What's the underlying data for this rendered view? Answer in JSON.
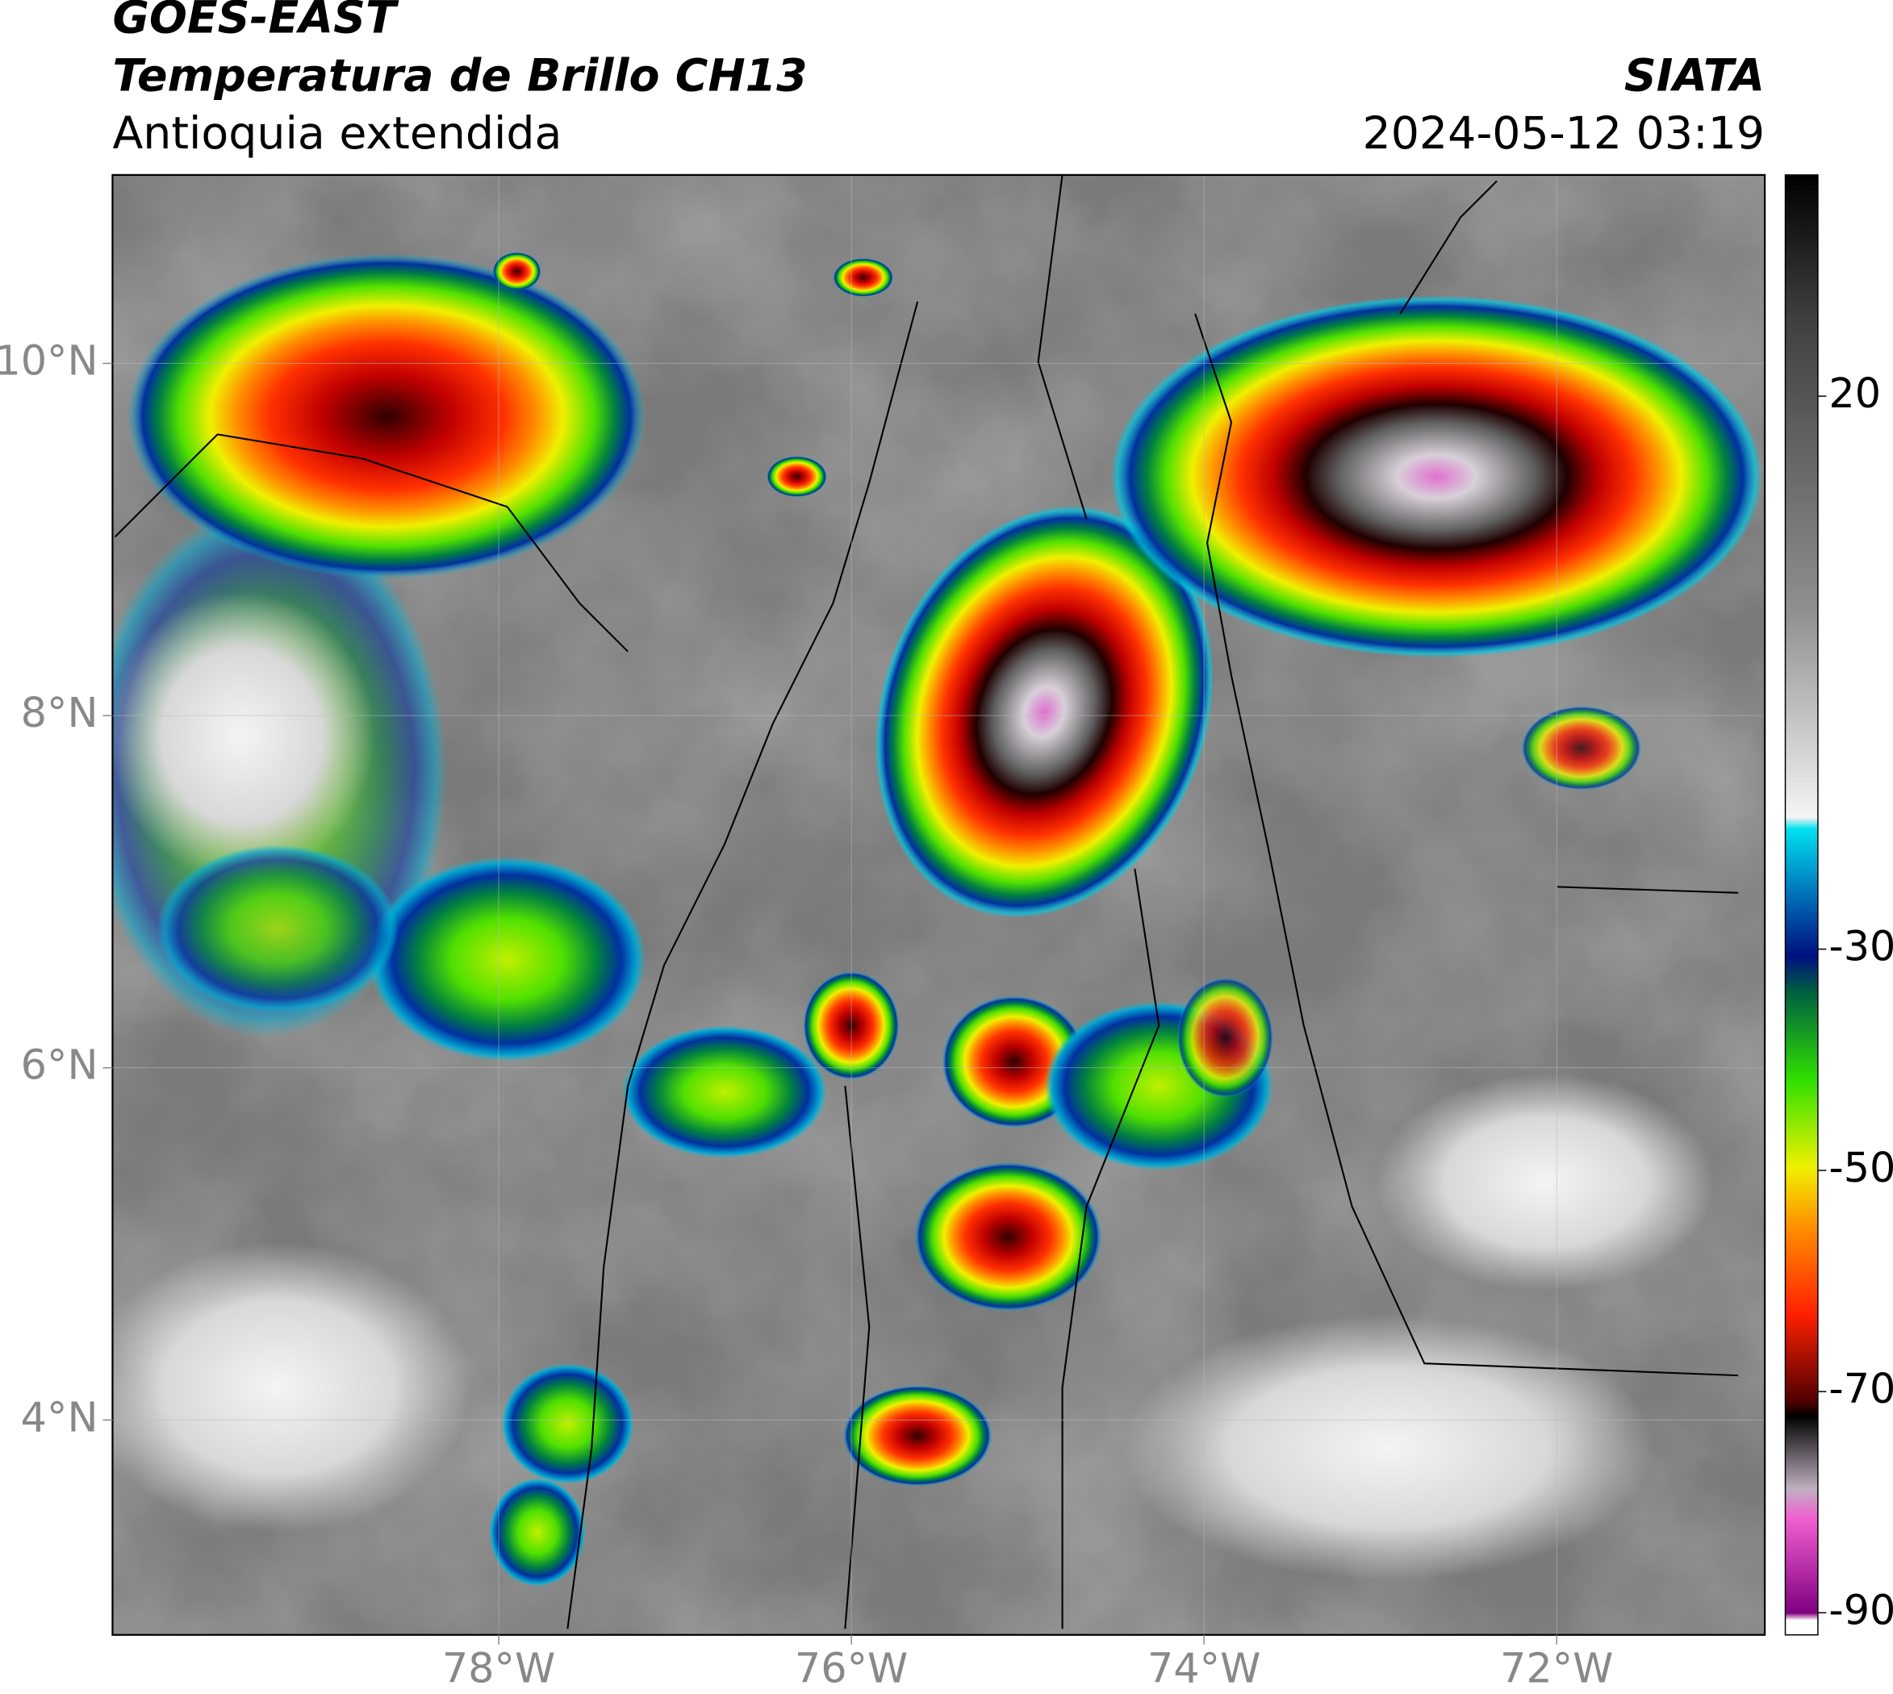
{
  "header": {
    "satellite": "GOES-EAST",
    "product": "Temperatura de Brillo CH13",
    "region": "Antioquia extendida",
    "agency": "SIATA",
    "datetime": "2024-05-12 03:19"
  },
  "map": {
    "xlim": [
      -80.19,
      -70.82
    ],
    "ylim": [
      2.78,
      11.07
    ],
    "xticks": [
      {
        "value": -78,
        "label": "78°W"
      },
      {
        "value": -76,
        "label": "76°W"
      },
      {
        "value": -74,
        "label": "74°W"
      },
      {
        "value": -72,
        "label": "72°W"
      }
    ],
    "yticks": [
      {
        "value": 4,
        "label": "4°N"
      },
      {
        "value": 6,
        "label": "6°N"
      },
      {
        "value": 8,
        "label": "8°N"
      },
      {
        "value": 10,
        "label": "10°N"
      }
    ],
    "grid": true
  },
  "colorbar": {
    "lim": [
      -92,
      40
    ],
    "ticks": [
      20,
      -30,
      -50,
      -70,
      -90
    ]
  }
}
